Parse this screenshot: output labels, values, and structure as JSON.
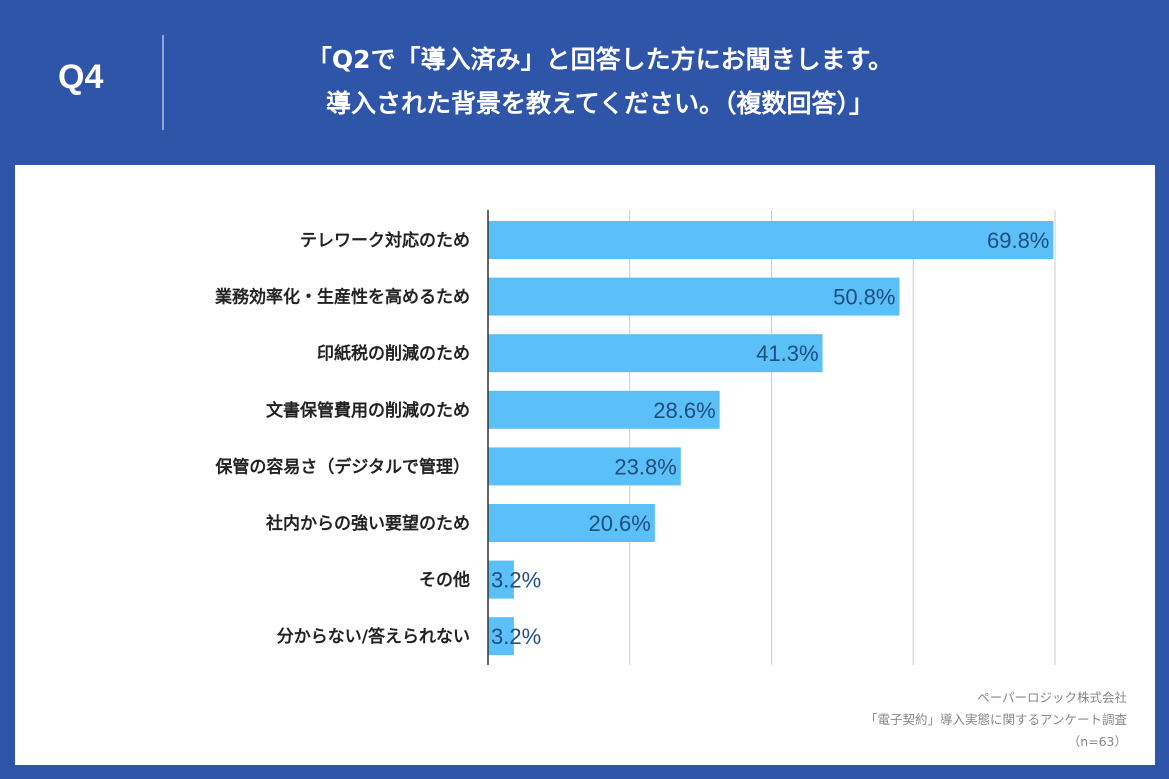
{
  "header": {
    "question_number": "Q4",
    "title_line1": "「Q2で「導入済み」と回答した方にお聞きします。",
    "title_line2": "導入された背景を教えてください。（複数回答）」"
  },
  "colors": {
    "background": "#2f55a8",
    "bar": "#5bc0f8",
    "value_label": "#1f4e80",
    "panel": "#ffffff"
  },
  "chart_data": {
    "type": "bar",
    "orientation": "horizontal",
    "categories": [
      "テレワーク対応のため",
      "業務効率化・生産性を高めるため",
      "印紙税の削減のため",
      "文書保管費用の削減のため",
      "保管の容易さ（デジタルで管理）",
      "社内からの強い要望のため",
      "その他",
      "分からない/答えられない"
    ],
    "values": [
      69.8,
      50.8,
      41.3,
      28.6,
      23.8,
      20.6,
      3.2,
      3.2
    ],
    "value_labels": [
      "69.8%",
      "50.8%",
      "41.3%",
      "28.6%",
      "23.8%",
      "20.6%",
      "3.2%",
      "3.2%"
    ],
    "xlim": [
      0,
      70
    ],
    "grid": true,
    "unit": "%"
  },
  "source": {
    "company": "ペーパーロジック株式会社",
    "survey": "「電子契約」導入実態に関するアンケート調査",
    "sample": "（n=63）"
  }
}
